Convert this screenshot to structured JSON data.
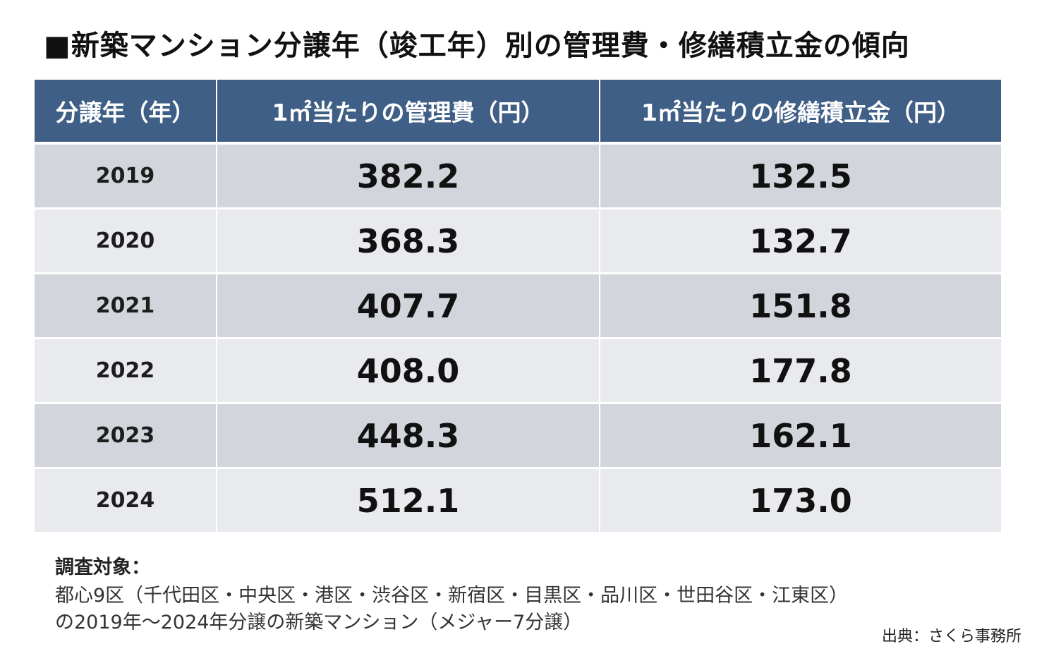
{
  "title": "■新築マンション分譲年（竣工年）別の管理費・修繕積立金の傾向",
  "colors": {
    "header_bg": "#3f5f86",
    "header_text": "#ffffff",
    "row_dark": "#d2d6dc",
    "row_light": "#e8eaee"
  },
  "chart_data": {
    "type": "table",
    "title": "■新築マンション分譲年（竣工年）別の管理費・修繕積立金の傾向",
    "columns": [
      "分譲年（年）",
      "1㎡当たりの管理費（円）",
      "1㎡当たりの修繕積立金（円）"
    ],
    "rows": [
      [
        "2019",
        "382.2",
        "132.5"
      ],
      [
        "2020",
        "368.3",
        "132.7"
      ],
      [
        "2021",
        "407.7",
        "151.8"
      ],
      [
        "2022",
        "408.0",
        "177.8"
      ],
      [
        "2023",
        "448.3",
        "162.1"
      ],
      [
        "2024",
        "512.1",
        "173.0"
      ]
    ]
  },
  "notes": {
    "heading": "調査対象：",
    "line1": "都心9区（千代田区・中央区・港区・渋谷区・新宿区・目黒区・品川区・世田谷区・江東区）",
    "line2": "の2019年～2024年分譲の新築マンション（メジャー7分譲）"
  },
  "source": "出典：さくら事務所"
}
